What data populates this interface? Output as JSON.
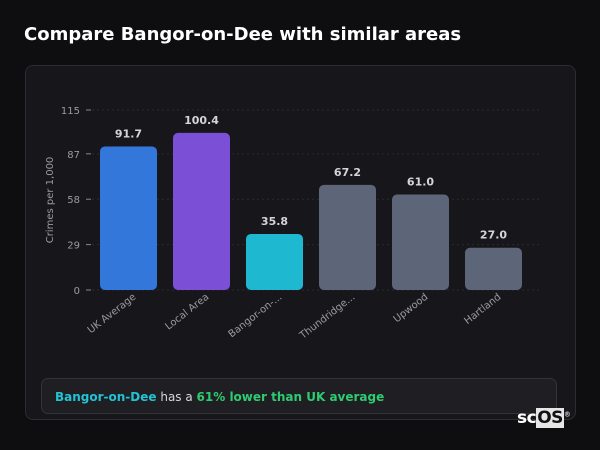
{
  "title": "Compare Bangor-on-Dee with similar areas",
  "chart_data": {
    "type": "bar",
    "categories": [
      "UK Average",
      "Local Area",
      "Bangor-on-...",
      "Thundridge...",
      "Upwood",
      "Hartland"
    ],
    "values": [
      91.7,
      100.4,
      35.8,
      67.2,
      61.0,
      27.0
    ],
    "value_labels": [
      "91.7",
      "100.4",
      "35.8",
      "67.2",
      "61.0",
      "27.0"
    ],
    "colors": [
      "#3477db",
      "#7b4fd6",
      "#1fb8d1",
      "#5c6678",
      "#5c6678",
      "#5c6678"
    ],
    "ylabel": "Crimes per 1,000",
    "yticks": [
      0,
      29,
      58,
      87,
      115
    ],
    "ylim": [
      0,
      115
    ],
    "grid": true
  },
  "footer": {
    "area": "Bangor-on-Dee",
    "middle": " has a ",
    "difference": "61% lower than UK average"
  },
  "logo": {
    "text_a": "sc",
    "text_b": "OS",
    "mark": "®"
  }
}
